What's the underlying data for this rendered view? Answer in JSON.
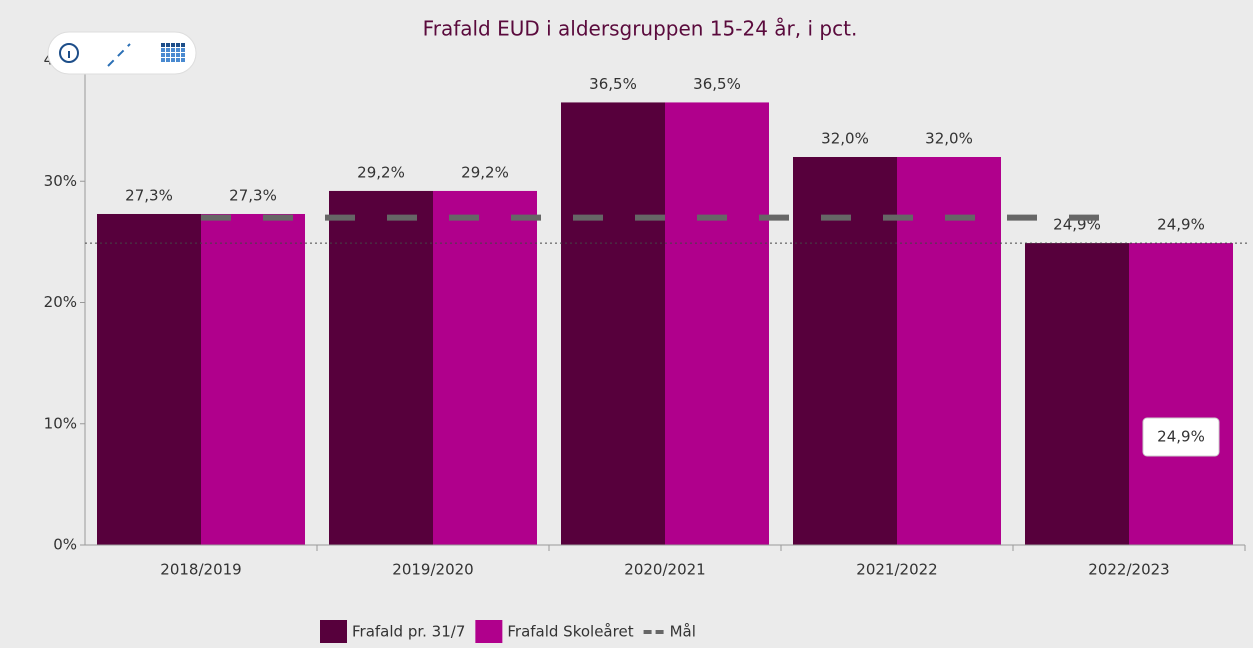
{
  "chart_data": {
    "type": "bar",
    "title": "Frafald EUD i aldersgruppen 15-24 år, i pct.",
    "categories": [
      "2018/2019",
      "2019/2020",
      "2020/2021",
      "2021/2022",
      "2022/2023"
    ],
    "series": [
      {
        "name": "Frafald pr. 31/7",
        "color": "#57003c",
        "values": [
          27.3,
          29.2,
          36.5,
          32.0,
          24.9
        ],
        "value_labels": [
          "27,3%",
          "29,2%",
          "36,5%",
          "32,0%",
          "24,9%"
        ]
      },
      {
        "name": "Frafald Skoleåret",
        "color": "#b0008c",
        "values": [
          27.3,
          29.2,
          36.5,
          32.0,
          24.9
        ],
        "value_labels": [
          "27,3%",
          "29,2%",
          "36,5%",
          "32,0%",
          "24,9%"
        ]
      },
      {
        "name": "Mål",
        "type": "line",
        "dashed": true,
        "color": "#666666",
        "values": [
          27,
          27,
          27,
          27,
          27
        ]
      }
    ],
    "reference_line": 24.9,
    "tooltip": "24,9%",
    "ylim": [
      0,
      40
    ],
    "yticks": [
      {
        "value": 0,
        "label": "0%"
      },
      {
        "value": 10,
        "label": "10%"
      },
      {
        "value": 20,
        "label": "20%"
      },
      {
        "value": 30,
        "label": "30%"
      },
      {
        "value": 40,
        "label": "40%"
      }
    ],
    "legend": "bottom"
  }
}
